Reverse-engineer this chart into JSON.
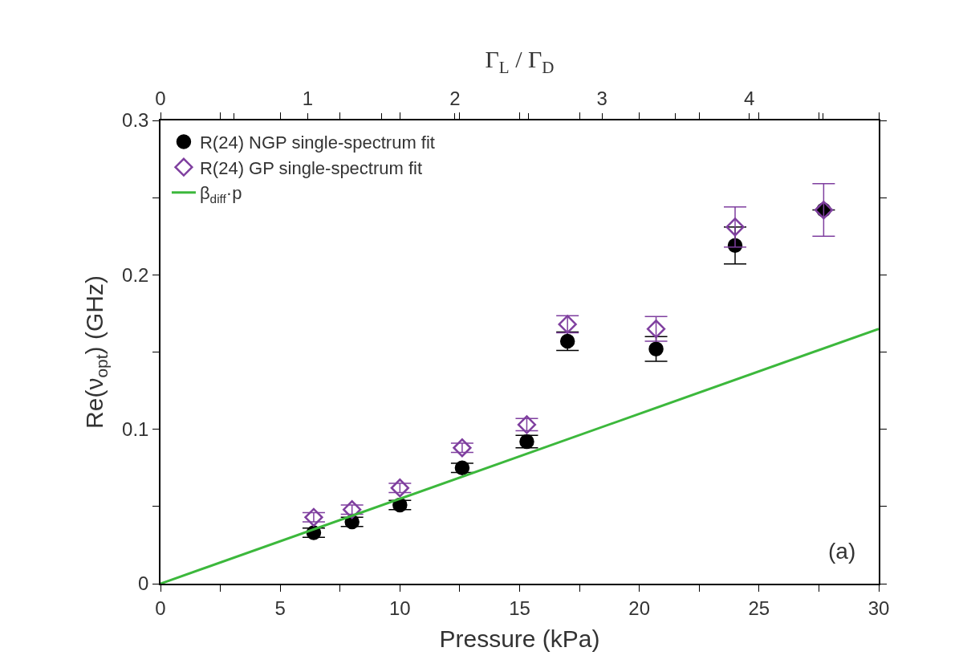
{
  "chart_data": {
    "type": "scatter",
    "xlabel": "Pressure (kPa)",
    "ylabel": "Re(ν$_{opt}$) (GHz)",
    "x2label": "Γ$_{L}$ / Γ$_{D}$",
    "x": [
      6.4,
      8.0,
      10.0,
      12.6,
      15.3,
      17.0,
      20.7,
      24.0,
      27.7
    ],
    "series": [
      {
        "name": "R(24) NGP single-spectrum fit",
        "color": "#000000",
        "marker": "circle",
        "values": [
          0.033,
          0.04,
          0.051,
          0.075,
          0.092,
          0.157,
          0.152,
          0.219,
          0.242
        ],
        "errors": [
          0.003,
          0.003,
          0.003,
          0.003,
          0.004,
          0.006,
          0.008,
          0.012,
          null
        ]
      },
      {
        "name": "R(24) GP single-spectrum fit",
        "color": "#7f3f9f",
        "marker": "diamond-open",
        "values": [
          0.043,
          0.048,
          0.062,
          0.088,
          0.103,
          0.168,
          0.165,
          0.231,
          0.242
        ],
        "errors": [
          0.003,
          0.003,
          0.003,
          0.003,
          0.004,
          0.0055,
          0.008,
          0.013,
          0.017
        ]
      },
      {
        "name": "β$_{diff}$·p",
        "type": "line",
        "color": "#3cb83c",
        "x": [
          0,
          30
        ],
        "values": [
          0,
          0.165
        ],
        "marker": "none",
        "line_style": "solid"
      }
    ],
    "xlim": [
      0,
      30
    ],
    "xticks": [
      0,
      {
        "value": 2.5,
        "label": null
      },
      5,
      {
        "value": 7.5,
        "label": null
      },
      10,
      {
        "value": 12.5,
        "label": null
      },
      15,
      {
        "value": 17.5,
        "label": null
      },
      20,
      {
        "value": 22.5,
        "label": null
      },
      25,
      {
        "value": 27.5,
        "label": null
      },
      30
    ],
    "ylim": [
      0,
      0.3
    ],
    "yticks": [
      0,
      {
        "value": 0.05,
        "label": null
      },
      0.1,
      {
        "value": 0.15,
        "label": null
      },
      0.2,
      {
        "value": 0.25,
        "label": null
      },
      0.3
    ],
    "x2lim": [
      0,
      4.88
    ],
    "x2ticks": [
      0,
      {
        "value": 0.5,
        "label": null
      },
      1,
      {
        "value": 1.5,
        "label": null
      },
      2,
      {
        "value": 2.5,
        "label": null
      },
      3,
      {
        "value": 3.5,
        "label": null
      },
      4,
      {
        "value": 4.5,
        "label": null
      }
    ],
    "annotations": [
      "(a)"
    ],
    "legend": "top left"
  }
}
